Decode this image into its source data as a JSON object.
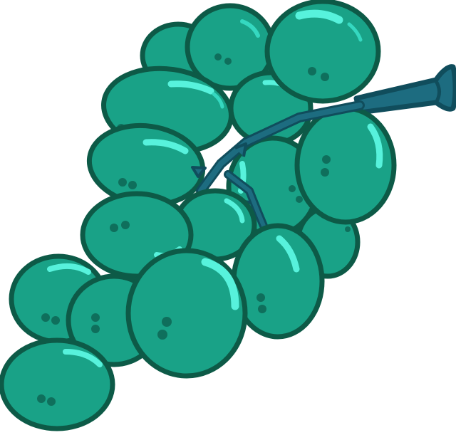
{
  "image": {
    "subject": "grape-bunch",
    "colors": {
      "background": "#ffffff",
      "outline": "#0d5a47",
      "grape_fill": "#19a287",
      "grape_shadow": "#138a72",
      "highlight": "#57f2dc",
      "highlight_soft": "#35d8c0",
      "spot": "#0f6f5c",
      "stem": "#1d6c80",
      "stem_dark": "#104d5c"
    }
  }
}
